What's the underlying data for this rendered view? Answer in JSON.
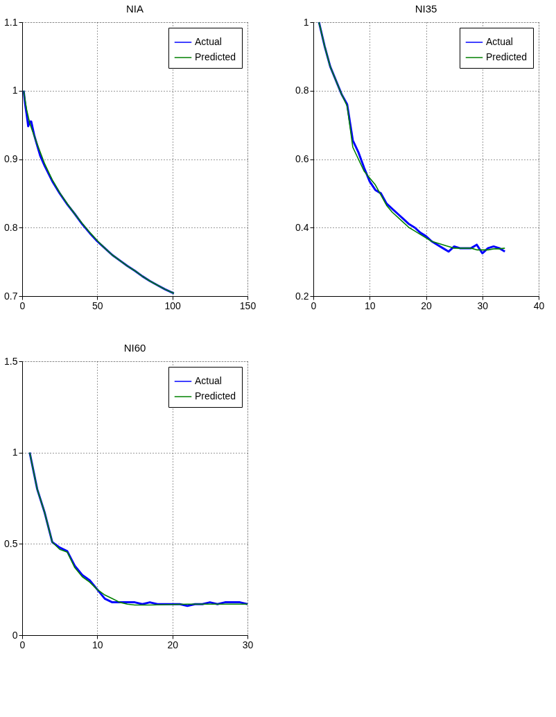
{
  "chart_data": [
    {
      "type": "line",
      "title": "NIA",
      "xlim": [
        0,
        150
      ],
      "xticks": [
        0,
        50,
        100,
        150
      ],
      "ylim": [
        0.7,
        1.1
      ],
      "yticks": [
        0.7,
        0.8,
        0.9,
        1,
        1.1
      ],
      "grid": true,
      "legend": "top right",
      "line_style": "solid",
      "marker": "none",
      "series": [
        {
          "name": "Actual",
          "color": "#0000ff",
          "x": [
            1,
            2,
            3,
            4,
            5,
            6,
            7,
            8,
            10,
            12,
            15,
            20,
            25,
            30,
            35,
            40,
            45,
            50,
            55,
            60,
            65,
            70,
            75,
            80,
            85,
            90,
            95,
            100,
            101
          ],
          "values": [
            1.0,
            0.98,
            0.965,
            0.948,
            0.955,
            0.955,
            0.945,
            0.935,
            0.92,
            0.905,
            0.89,
            0.868,
            0.85,
            0.834,
            0.82,
            0.805,
            0.792,
            0.78,
            0.77,
            0.76,
            0.752,
            0.744,
            0.737,
            0.729,
            0.722,
            0.716,
            0.71,
            0.705,
            0.704
          ]
        },
        {
          "name": "Predicted",
          "color": "#008000",
          "x": [
            1,
            2,
            3,
            5,
            7,
            10,
            15,
            20,
            25,
            30,
            35,
            40,
            45,
            50,
            55,
            60,
            65,
            70,
            75,
            80,
            85,
            90,
            95,
            100,
            101
          ],
          "values": [
            1.0,
            0.985,
            0.972,
            0.953,
            0.94,
            0.922,
            0.893,
            0.87,
            0.851,
            0.835,
            0.82,
            0.806,
            0.793,
            0.781,
            0.77,
            0.76,
            0.752,
            0.744,
            0.737,
            0.729,
            0.722,
            0.716,
            0.71,
            0.705,
            0.704
          ]
        }
      ]
    },
    {
      "type": "line",
      "title": "NI35",
      "xlim": [
        0,
        40
      ],
      "xticks": [
        0,
        10,
        20,
        30,
        40
      ],
      "ylim": [
        0.2,
        1
      ],
      "yticks": [
        0.2,
        0.4,
        0.6,
        0.8,
        1
      ],
      "grid": true,
      "legend": "top right",
      "line_style": "solid",
      "marker": "none",
      "series": [
        {
          "name": "Actual",
          "color": "#0000ff",
          "x": [
            1,
            2,
            3,
            4,
            5,
            6,
            7,
            8,
            9,
            10,
            11,
            12,
            13,
            14,
            15,
            16,
            17,
            18,
            19,
            20,
            21,
            22,
            23,
            24,
            25,
            26,
            27,
            28,
            29,
            30,
            31,
            32,
            33,
            34
          ],
          "values": [
            1.0,
            0.93,
            0.87,
            0.83,
            0.79,
            0.76,
            0.655,
            0.62,
            0.575,
            0.535,
            0.51,
            0.5,
            0.47,
            0.455,
            0.44,
            0.425,
            0.41,
            0.4,
            0.385,
            0.375,
            0.36,
            0.35,
            0.34,
            0.33,
            0.345,
            0.34,
            0.34,
            0.34,
            0.35,
            0.325,
            0.34,
            0.345,
            0.34,
            0.33
          ]
        },
        {
          "name": "Predicted",
          "color": "#008000",
          "x": [
            1,
            2,
            3,
            4,
            5,
            6,
            7,
            8,
            9,
            10,
            11,
            12,
            13,
            14,
            15,
            16,
            17,
            18,
            19,
            20,
            21,
            22,
            23,
            24,
            25,
            26,
            27,
            28,
            29,
            30,
            31,
            32,
            33,
            34
          ],
          "values": [
            1.0,
            0.93,
            0.87,
            0.83,
            0.79,
            0.755,
            0.635,
            0.6,
            0.565,
            0.545,
            0.525,
            0.495,
            0.465,
            0.445,
            0.43,
            0.415,
            0.4,
            0.39,
            0.38,
            0.37,
            0.36,
            0.355,
            0.35,
            0.345,
            0.34,
            0.34,
            0.34,
            0.34,
            0.335,
            0.335,
            0.335,
            0.338,
            0.338,
            0.34
          ]
        }
      ]
    },
    {
      "type": "line",
      "title": "NI60",
      "xlim": [
        0,
        30
      ],
      "xticks": [
        0,
        10,
        20,
        30
      ],
      "ylim": [
        0,
        1.5
      ],
      "yticks": [
        0,
        0.5,
        1,
        1.5
      ],
      "grid": true,
      "legend": "top right",
      "line_style": "solid",
      "marker": "none",
      "series": [
        {
          "name": "Actual",
          "color": "#0000ff",
          "x": [
            1,
            2,
            3,
            4,
            5,
            6,
            7,
            8,
            9,
            10,
            11,
            12,
            13,
            14,
            15,
            16,
            17,
            18,
            19,
            20,
            21,
            22,
            23,
            24,
            25,
            26,
            27,
            28,
            29,
            30
          ],
          "values": [
            1.0,
            0.8,
            0.67,
            0.51,
            0.48,
            0.46,
            0.38,
            0.33,
            0.3,
            0.25,
            0.2,
            0.18,
            0.18,
            0.18,
            0.18,
            0.17,
            0.18,
            0.17,
            0.17,
            0.17,
            0.17,
            0.16,
            0.17,
            0.17,
            0.18,
            0.17,
            0.18,
            0.18,
            0.18,
            0.17
          ]
        },
        {
          "name": "Predicted",
          "color": "#008000",
          "x": [
            1,
            2,
            3,
            4,
            5,
            6,
            7,
            8,
            9,
            10,
            11,
            12,
            13,
            14,
            15,
            16,
            17,
            18,
            19,
            20,
            21,
            22,
            23,
            24,
            25,
            26,
            27,
            28,
            29,
            30
          ],
          "values": [
            1.0,
            0.8,
            0.67,
            0.51,
            0.47,
            0.455,
            0.37,
            0.32,
            0.29,
            0.25,
            0.22,
            0.2,
            0.18,
            0.17,
            0.165,
            0.165,
            0.165,
            0.166,
            0.167,
            0.168,
            0.169,
            0.17,
            0.17,
            0.17,
            0.17,
            0.17,
            0.17,
            0.17,
            0.17,
            0.17
          ]
        }
      ]
    }
  ]
}
